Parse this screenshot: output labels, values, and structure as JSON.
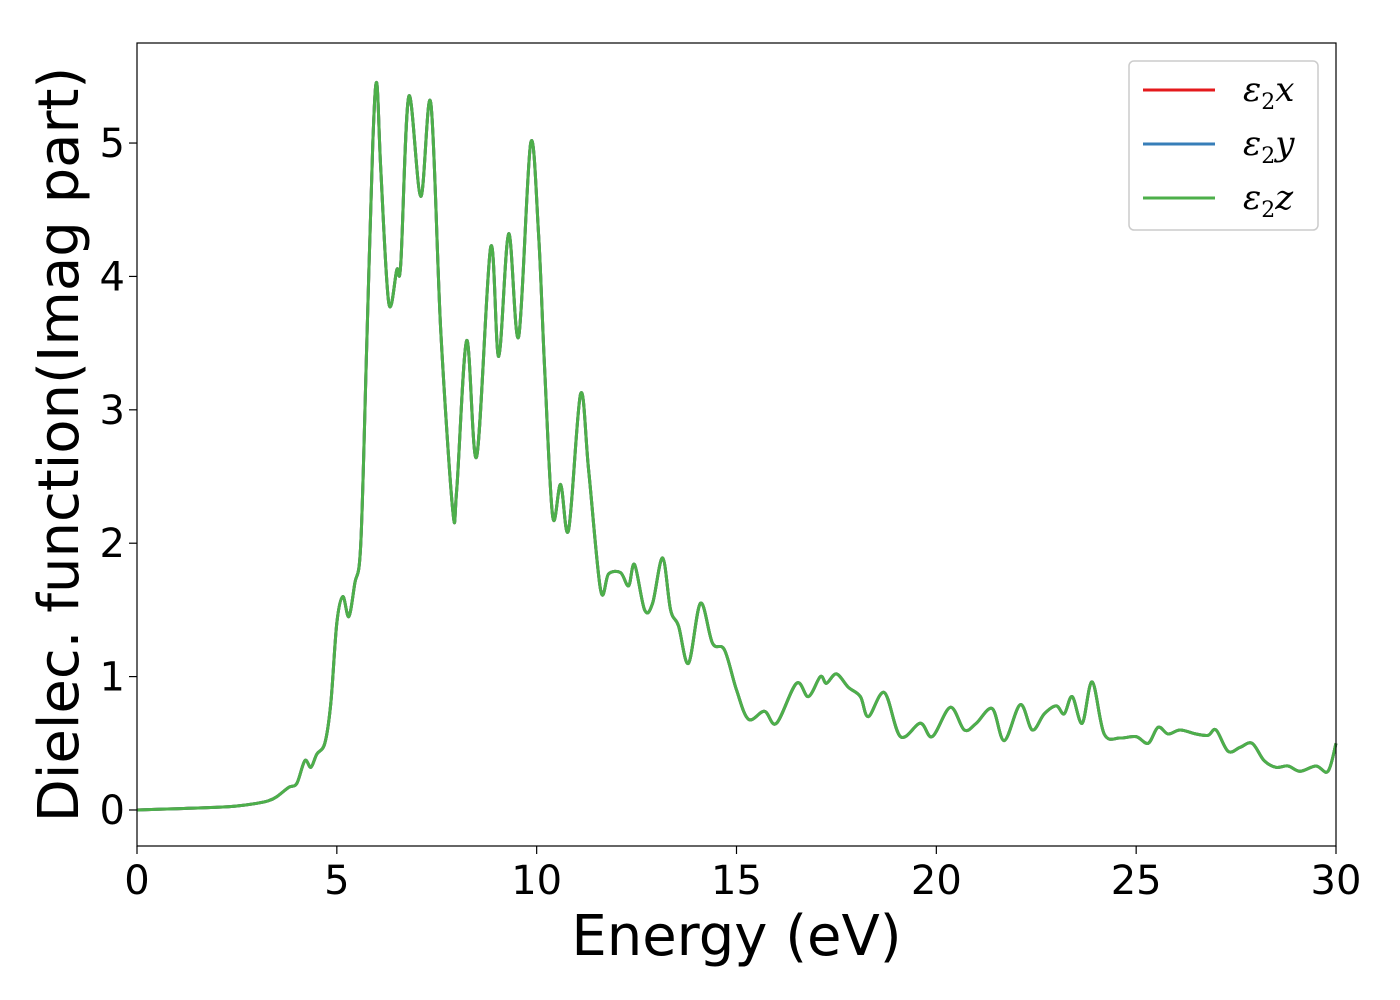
{
  "chart_data": {
    "type": "line",
    "xlabel": "Energy (eV)",
    "ylabel": "Dielec. function(Imag part)",
    "xlim": [
      0,
      30
    ],
    "ylim": [
      -0.27,
      5.75
    ],
    "xticks": [
      0,
      5,
      10,
      15,
      20,
      25,
      30
    ],
    "yticks": [
      0,
      1,
      2,
      3,
      4,
      5
    ],
    "grid": false,
    "legend_position": "top-right",
    "series": [
      {
        "name": "x",
        "color": "#e41a1c"
      },
      {
        "name": "y",
        "color": "#377eb8"
      },
      {
        "name": "z",
        "color": "#4daf4a"
      }
    ],
    "legend_prefix": "ε",
    "legend_subscript": "2",
    "x": [
      0,
      1,
      2,
      2.5,
      3,
      3.3,
      3.5,
      3.8,
      4.0,
      4.2,
      4.35,
      4.5,
      4.7,
      4.85,
      5.0,
      5.15,
      5.3,
      5.45,
      5.6,
      5.75,
      5.9,
      6.0,
      6.1,
      6.3,
      6.5,
      6.6,
      6.8,
      7.1,
      7.35,
      7.6,
      7.9,
      8.0,
      8.25,
      8.5,
      8.85,
      9.05,
      9.3,
      9.55,
      9.85,
      10.05,
      10.2,
      10.4,
      10.6,
      10.8,
      11.1,
      11.3,
      11.6,
      11.8,
      12.1,
      12.3,
      12.45,
      12.7,
      12.9,
      13.15,
      13.35,
      13.55,
      13.8,
      14.1,
      14.4,
      14.7,
      15.0,
      15.3,
      15.7,
      16.0,
      16.5,
      16.8,
      17.1,
      17.25,
      17.5,
      17.8,
      18.1,
      18.3,
      18.7,
      19.1,
      19.6,
      19.9,
      20.35,
      20.7,
      21.0,
      21.4,
      21.7,
      22.1,
      22.4,
      22.7,
      23.0,
      23.2,
      23.4,
      23.65,
      23.9,
      24.2,
      24.6,
      25.0,
      25.3,
      25.55,
      25.8,
      26.1,
      26.5,
      26.8,
      27.0,
      27.3,
      27.6,
      27.9,
      28.2,
      28.5,
      28.8,
      29.1,
      29.5,
      29.8,
      30
    ],
    "y": [
      0.0,
      0.01,
      0.02,
      0.03,
      0.05,
      0.07,
      0.1,
      0.17,
      0.2,
      0.37,
      0.32,
      0.42,
      0.5,
      0.8,
      1.4,
      1.6,
      1.45,
      1.7,
      2.0,
      3.5,
      5.0,
      5.45,
      4.8,
      3.8,
      4.05,
      4.1,
      5.35,
      4.6,
      5.3,
      3.6,
      2.25,
      2.4,
      3.52,
      2.65,
      4.22,
      3.4,
      4.32,
      3.55,
      5.0,
      4.3,
      3.3,
      2.2,
      2.44,
      2.1,
      3.12,
      2.55,
      1.65,
      1.77,
      1.78,
      1.68,
      1.84,
      1.5,
      1.55,
      1.89,
      1.5,
      1.38,
      1.1,
      1.55,
      1.25,
      1.2,
      0.9,
      0.68,
      0.74,
      0.65,
      0.95,
      0.85,
      1.0,
      0.95,
      1.02,
      0.92,
      0.85,
      0.7,
      0.88,
      0.55,
      0.65,
      0.55,
      0.77,
      0.6,
      0.65,
      0.76,
      0.52,
      0.79,
      0.6,
      0.72,
      0.78,
      0.72,
      0.85,
      0.65,
      0.96,
      0.57,
      0.54,
      0.55,
      0.5,
      0.62,
      0.57,
      0.6,
      0.57,
      0.56,
      0.6,
      0.44,
      0.47,
      0.5,
      0.37,
      0.32,
      0.33,
      0.29,
      0.33,
      0.29,
      0.5
    ]
  }
}
